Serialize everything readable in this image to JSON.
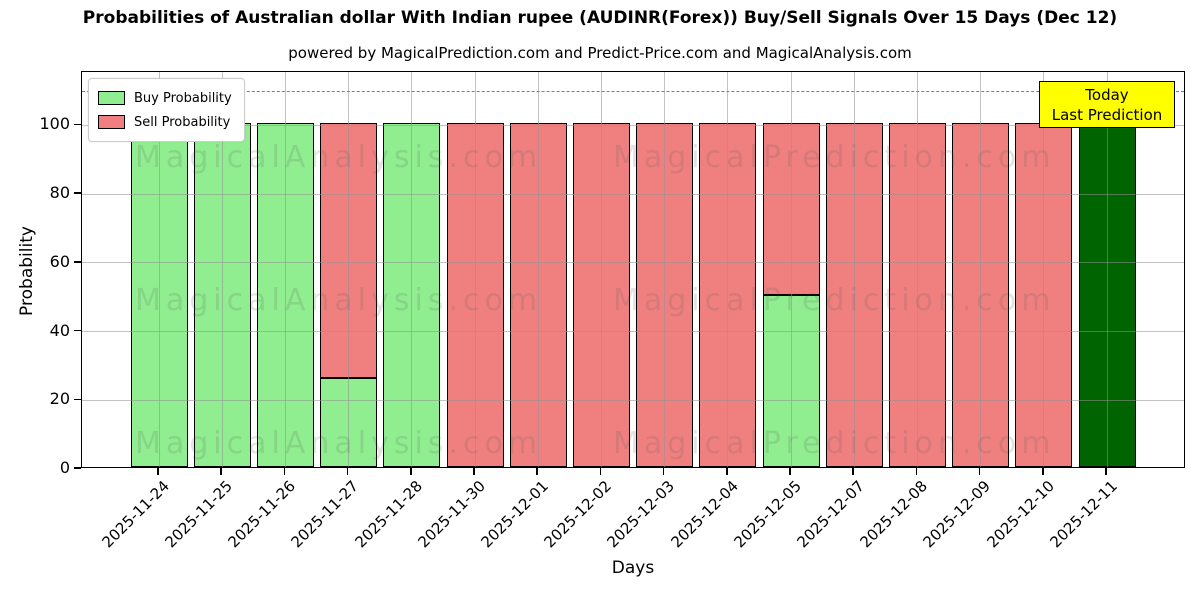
{
  "chart_data": {
    "type": "bar",
    "stacked": true,
    "title": "Probabilities of Australian dollar With Indian rupee (AUDINR(Forex)) Buy/Sell Signals Over 15 Days (Dec 12)",
    "subtitle": "powered by MagicalPrediction.com and Predict-Price.com and MagicalAnalysis.com",
    "xlabel": "Days",
    "ylabel": "Probability",
    "categories": [
      "2025-11-24",
      "2025-11-25",
      "2025-11-26",
      "2025-11-27",
      "2025-11-28",
      "2025-11-30",
      "2025-12-01",
      "2025-12-02",
      "2025-12-03",
      "2025-12-04",
      "2025-12-05",
      "2025-12-07",
      "2025-12-08",
      "2025-12-09",
      "2025-12-10",
      "2025-12-11"
    ],
    "series": [
      {
        "name": "Buy Probability",
        "color": "#90EE90",
        "values": [
          100,
          100,
          100,
          26,
          100,
          0,
          0,
          0,
          0,
          0,
          50,
          0,
          0,
          0,
          0,
          100
        ]
      },
      {
        "name": "Sell Probability",
        "color": "#F08080",
        "values": [
          0,
          0,
          0,
          74,
          0,
          100,
          100,
          100,
          100,
          100,
          50,
          100,
          100,
          100,
          100,
          0
        ]
      }
    ],
    "today": {
      "index": 15,
      "color": "#006400"
    },
    "annotation": {
      "line1": "Today",
      "line2": "Last Prediction",
      "bg": "#FFFF00"
    },
    "watermarks": {
      "left": "MagicalAnalysis.com",
      "right": "MagicalPrediction.com"
    },
    "yticks": [
      0,
      20,
      40,
      60,
      80,
      100
    ],
    "ylim": [
      0,
      115.5
    ],
    "dashed_line_y": 110,
    "grid": true,
    "legend_position": "upper left"
  }
}
